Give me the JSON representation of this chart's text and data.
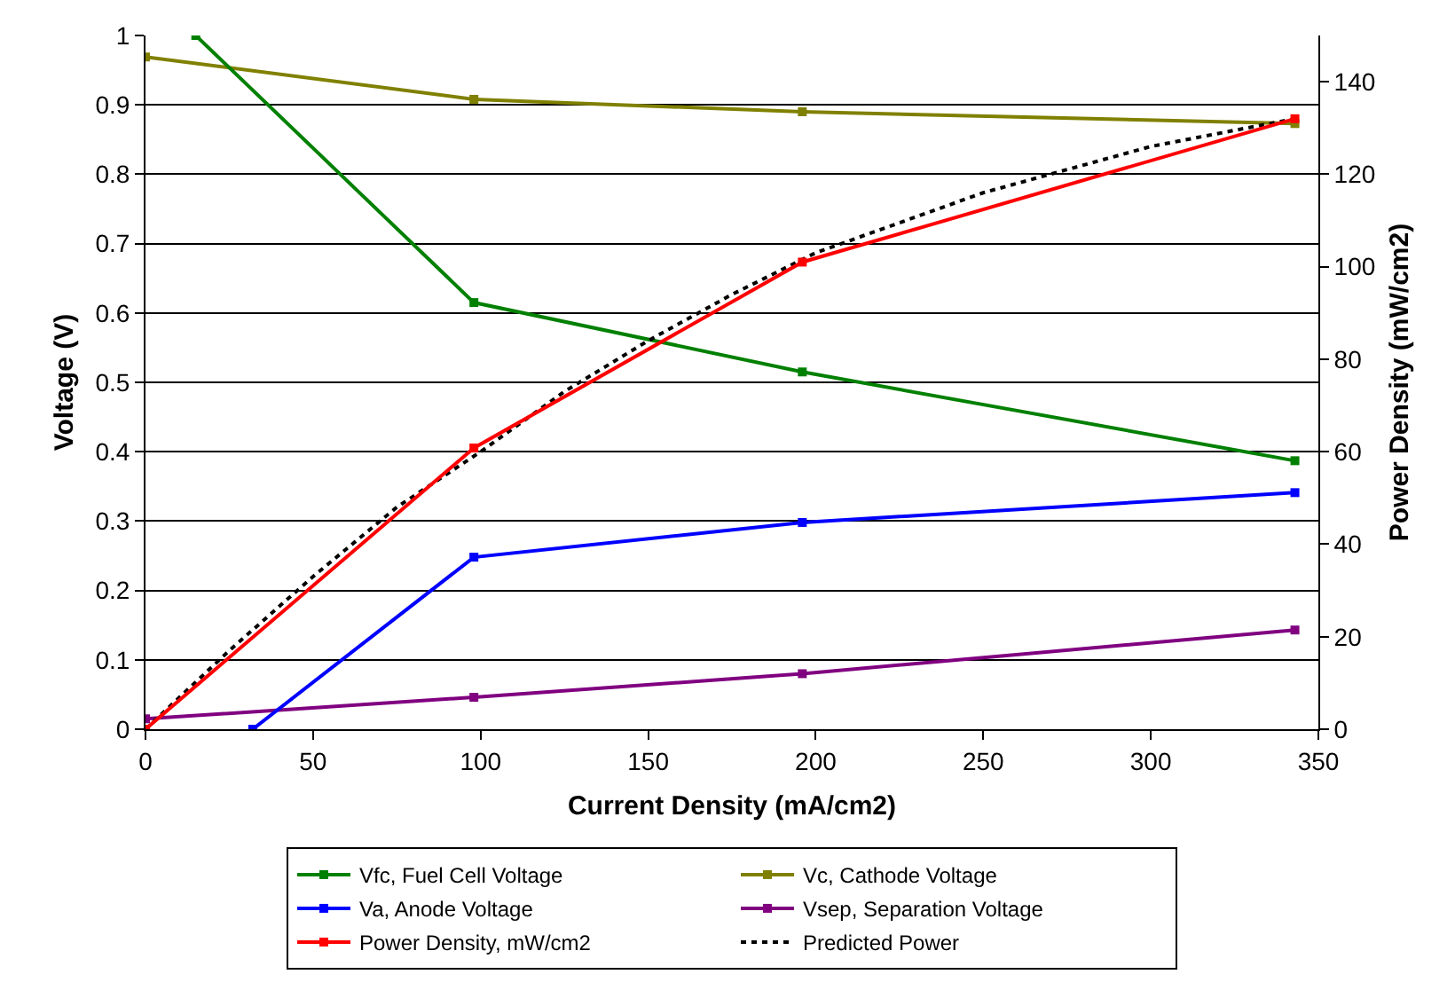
{
  "chart_data": {
    "type": "line",
    "xlabel": "Current Density (mA/cm2)",
    "ylabel": "Voltage (V)",
    "y2label": "Power Density (mW/cm2)",
    "xlim": [
      0,
      350
    ],
    "xticks": [
      0,
      50,
      100,
      150,
      200,
      250,
      300,
      350
    ],
    "ylim": [
      0,
      1
    ],
    "yticks": [
      0,
      0.1,
      0.2,
      0.3,
      0.4,
      0.5,
      0.6,
      0.7,
      0.8,
      0.9,
      1
    ],
    "y2lim": [
      0,
      150
    ],
    "y2ticks": [
      0,
      20,
      40,
      60,
      80,
      100,
      120,
      140
    ],
    "grid": "y",
    "legend": "bottom",
    "marker": "square",
    "line_style": "solid",
    "series": [
      {
        "name": "Vfc, Fuel Cell Voltage",
        "color": "#008000",
        "x": [
          15,
          98,
          196,
          343
        ],
        "values": [
          1.0,
          0.615,
          0.515,
          0.387
        ]
      },
      {
        "name": "Vc, Cathode Voltage",
        "color": "#808000",
        "x": [
          0,
          98,
          196,
          343
        ],
        "values": [
          0.969,
          0.908,
          0.89,
          0.873
        ]
      },
      {
        "name": "Va, Anode Voltage",
        "color": "#0000ff",
        "x": [
          32,
          98,
          196,
          343
        ],
        "values": [
          0,
          0.248,
          0.298,
          0.341
        ]
      },
      {
        "name": "Vsep, Separation Voltage",
        "color": "#800080",
        "x": [
          0,
          98,
          196,
          343
        ],
        "values": [
          0.015,
          0.046,
          0.08,
          0.143
        ]
      },
      {
        "name": "Power Density, mW/cm2",
        "color": "#ff0000",
        "axis": "y2",
        "x": [
          0,
          98,
          196,
          343
        ],
        "values": [
          0,
          60.8,
          101,
          132
        ]
      },
      {
        "name": "Predicted Power",
        "color": "#000000",
        "axis": "y2",
        "marker": "none",
        "line_style": "dotted",
        "x": [
          0,
          25,
          50,
          75,
          100,
          125,
          150,
          175,
          200,
          250,
          300,
          343
        ],
        "values": [
          0,
          17,
          33,
          48,
          60,
          73,
          84,
          94,
          103,
          116,
          126,
          132
        ]
      }
    ]
  }
}
